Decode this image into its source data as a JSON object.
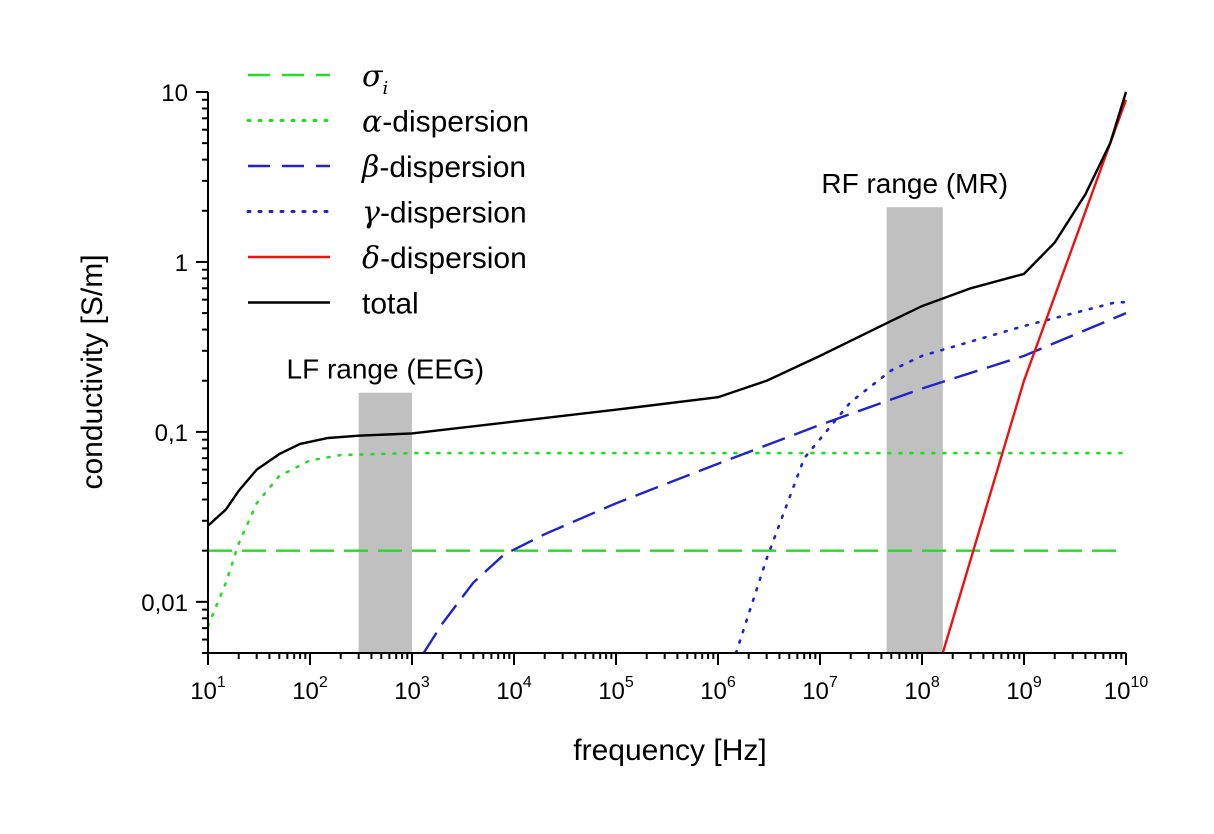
{
  "chart_data": {
    "type": "line",
    "xscale": "log",
    "yscale": "log",
    "xlabel": "frequency [Hz]",
    "ylabel": "conductivity [S/m]",
    "xlim": [
      10,
      10000000000
    ],
    "ylim": [
      0.005,
      10
    ],
    "x_ticks": [
      {
        "base": "10",
        "exp": "1"
      },
      {
        "base": "10",
        "exp": "2"
      },
      {
        "base": "10",
        "exp": "3"
      },
      {
        "base": "10",
        "exp": "4"
      },
      {
        "base": "10",
        "exp": "5"
      },
      {
        "base": "10",
        "exp": "6"
      },
      {
        "base": "10",
        "exp": "7"
      },
      {
        "base": "10",
        "exp": "8"
      },
      {
        "base": "10",
        "exp": "9"
      },
      {
        "base": "10",
        "exp": "10"
      }
    ],
    "y_ticks": [
      {
        "value": 0.01,
        "label": "0,01"
      },
      {
        "value": 0.1,
        "label": "0,1"
      },
      {
        "value": 1,
        "label": "1"
      },
      {
        "value": 10,
        "label": "10"
      }
    ],
    "shaded_regions": [
      {
        "label": "LF range (EEG)",
        "x_from": 300,
        "x_to": 1000,
        "y_from": 0.005,
        "y_to": 0.17,
        "color": "#c0c0c0"
      },
      {
        "label": "RF range (MR)",
        "x_from": 45000000,
        "x_to": 160000000,
        "y_from": 0.005,
        "y_to": 2.1,
        "color": "#c0c0c0"
      }
    ],
    "series": [
      {
        "name": "sigma_i",
        "greek": "σ",
        "subscript": "i",
        "suffix": "",
        "color": "#22dd22",
        "style": "dashed",
        "points": [
          [
            10,
            0.02
          ],
          [
            10000000000,
            0.02
          ]
        ]
      },
      {
        "name": "alpha-dispersion",
        "greek": "α",
        "subscript": "",
        "suffix": "-dispersion",
        "color": "#22dd22",
        "style": "dotted",
        "points": [
          [
            10,
            0.0072
          ],
          [
            15,
            0.013
          ],
          [
            20,
            0.022
          ],
          [
            30,
            0.038
          ],
          [
            50,
            0.055
          ],
          [
            100,
            0.068
          ],
          [
            200,
            0.073
          ],
          [
            1000,
            0.075
          ],
          [
            10000000000,
            0.075
          ]
        ]
      },
      {
        "name": "beta-dispersion",
        "greek": "β",
        "subscript": "",
        "suffix": "-dispersion",
        "color": "#2222cc",
        "style": "dashed",
        "points": [
          [
            1300,
            0.005
          ],
          [
            2000,
            0.0075
          ],
          [
            4000,
            0.013
          ],
          [
            8000,
            0.019
          ],
          [
            20000,
            0.025
          ],
          [
            100000,
            0.038
          ],
          [
            1000000,
            0.065
          ],
          [
            10000000,
            0.11
          ],
          [
            100000000,
            0.18
          ],
          [
            1000000000,
            0.28
          ],
          [
            10000000000,
            0.5
          ]
        ]
      },
      {
        "name": "gamma-dispersion",
        "greek": "γ",
        "subscript": "",
        "suffix": "-dispersion",
        "color": "#2222cc",
        "style": "dotted",
        "points": [
          [
            1500000,
            0.005
          ],
          [
            3000000,
            0.018
          ],
          [
            7000000,
            0.07
          ],
          [
            20000000,
            0.15
          ],
          [
            50000000,
            0.23
          ],
          [
            100000000,
            0.28
          ],
          [
            300000000,
            0.34
          ],
          [
            1000000000,
            0.42
          ],
          [
            8000000000,
            0.58
          ],
          [
            10000000000,
            0.58
          ]
        ]
      },
      {
        "name": "delta-dispersion",
        "greek": "δ",
        "subscript": "",
        "suffix": "-dispersion",
        "color": "#ee1111",
        "style": "solid",
        "points": [
          [
            160000000,
            0.005
          ],
          [
            1000000000,
            0.2
          ],
          [
            10000000000,
            9
          ]
        ]
      },
      {
        "name": "total",
        "greek": "",
        "subscript": "",
        "suffix": "total",
        "color": "#000000",
        "style": "solid",
        "points": [
          [
            10,
            0.028
          ],
          [
            15,
            0.035
          ],
          [
            20,
            0.045
          ],
          [
            30,
            0.06
          ],
          [
            50,
            0.074
          ],
          [
            80,
            0.085
          ],
          [
            150,
            0.092
          ],
          [
            300,
            0.095
          ],
          [
            1000,
            0.098
          ],
          [
            10000,
            0.115
          ],
          [
            100000,
            0.135
          ],
          [
            1000000,
            0.16
          ],
          [
            3000000,
            0.2
          ],
          [
            10000000,
            0.28
          ],
          [
            50000000,
            0.45
          ],
          [
            100000000,
            0.55
          ],
          [
            300000000,
            0.7
          ],
          [
            1000000000,
            0.85
          ],
          [
            2000000000,
            1.3
          ],
          [
            4000000000,
            2.5
          ],
          [
            7000000000,
            5
          ],
          [
            10000000000,
            10
          ]
        ]
      }
    ]
  }
}
